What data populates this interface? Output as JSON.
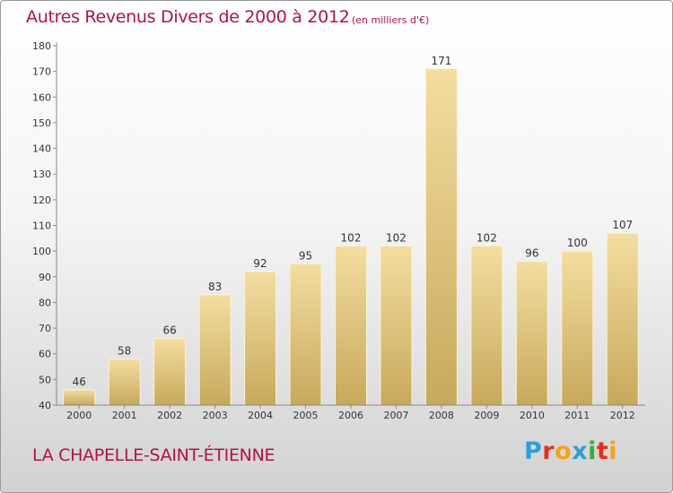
{
  "header": {
    "title": "Autres Revenus Divers de 2000 à 2012",
    "subtitle": "(en milliers d'€)"
  },
  "footer": {
    "commune": "LA CHAPELLE-SAINT-ÉTIENNE",
    "logo_letters": [
      {
        "char": "P",
        "color": "#2e9fd8"
      },
      {
        "char": "r",
        "color": "#e2301c"
      },
      {
        "char": "o",
        "color": "#f5a21b"
      },
      {
        "char": "x",
        "color": "#2e9fd8"
      },
      {
        "char": "i",
        "color": "#3eaa3a"
      },
      {
        "char": "t",
        "color": "#e2301c"
      },
      {
        "char": "i",
        "color": "#f5a21b"
      }
    ]
  },
  "chart_data": {
    "type": "bar",
    "title": "Autres Revenus Divers de 2000 à 2012",
    "subtitle": "(en milliers d'€)",
    "categories": [
      "2000",
      "2001",
      "2002",
      "2003",
      "2004",
      "2005",
      "2006",
      "2007",
      "2008",
      "2009",
      "2010",
      "2011",
      "2012"
    ],
    "values": [
      46,
      58,
      66,
      83,
      92,
      95,
      102,
      102,
      171,
      102,
      96,
      100,
      107
    ],
    "xlabel": "",
    "ylabel": "",
    "ylim": [
      40,
      180
    ],
    "ytick_step": 10,
    "grid": false,
    "legend": "none",
    "colors": {
      "bar_top": "#f3dda0",
      "bar_bottom": "#c7a95c",
      "bar_edge": "#fbf3d8",
      "axis": "#888888",
      "tick_text": "#333333"
    }
  }
}
